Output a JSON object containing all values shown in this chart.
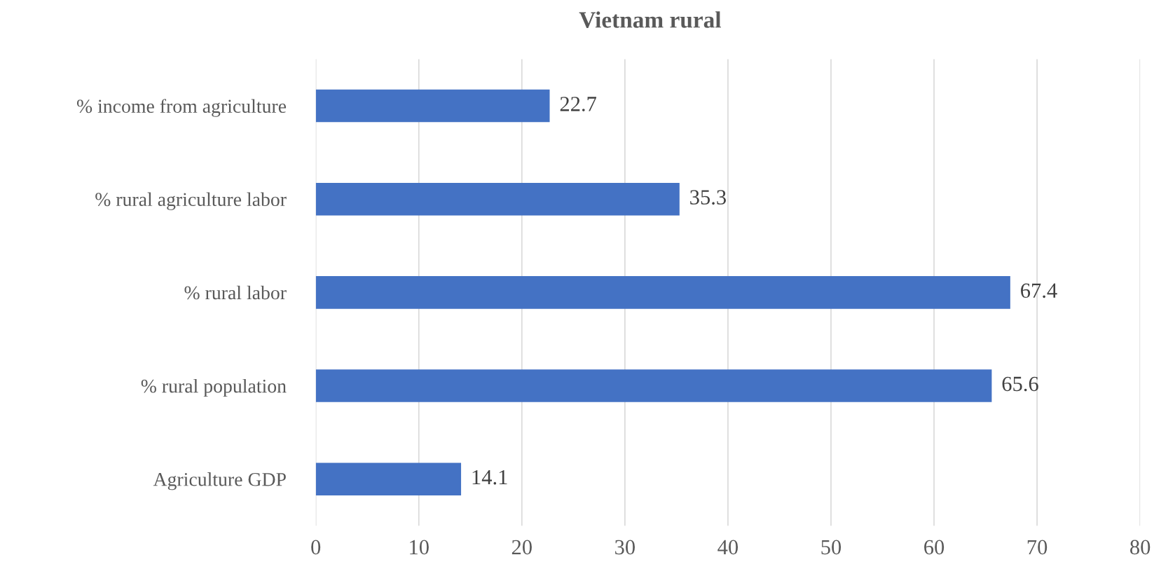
{
  "chart_data": {
    "type": "bar",
    "orientation": "horizontal",
    "title": "Vietnam rural",
    "categories": [
      "% income from agriculture",
      "% rural agriculture labor",
      "% rural labor",
      "% rural population",
      "Agriculture GDP"
    ],
    "values": [
      22.7,
      35.3,
      67.4,
      65.6,
      14.1
    ],
    "color": "#4472c4",
    "xlim": [
      0,
      80
    ],
    "xticks": [
      0,
      10,
      20,
      30,
      40,
      50,
      60,
      70,
      80
    ],
    "grid": "x",
    "data_labels": true
  }
}
